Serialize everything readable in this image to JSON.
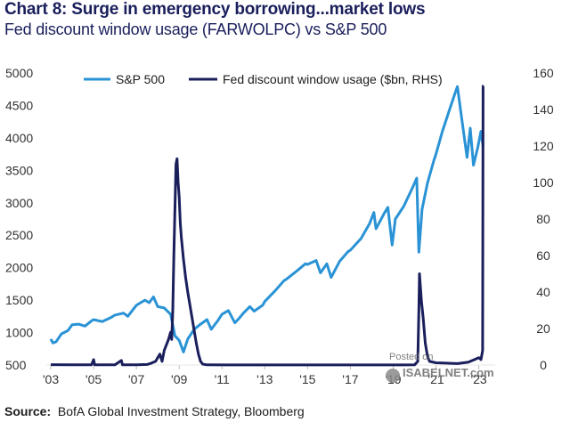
{
  "header": {
    "title": "Chart 8: Surge in emergency borrowing...market lows",
    "subtitle": "Fed discount window usage (FARWOLPC) vs S&P 500"
  },
  "footer": {
    "source_label": "Source:",
    "source_text": "BofA Global Investment Strategy, Bloomberg"
  },
  "watermark": {
    "posted": "Posted on",
    "site": "ISABELNET.com"
  },
  "colors": {
    "sp500": "#2a93d5",
    "discount": "#1a1f5c"
  },
  "chart_data": {
    "type": "line",
    "title": "Fed discount window usage (FARWOLPC) vs S&P 500",
    "x_ticks": [
      "'03",
      "'05",
      "'07",
      "'09",
      "'11",
      "'13",
      "'15",
      "'17",
      "'19",
      "'21",
      "'23"
    ],
    "x_tick_years": [
      2003,
      2005,
      2007,
      2009,
      2011,
      2013,
      2015,
      2017,
      2019,
      2021,
      2023
    ],
    "xlim": [
      2003,
      2023.6
    ],
    "left_axis": {
      "ylim": [
        500,
        5000
      ],
      "ticks": [
        "500",
        "1000",
        "1500",
        "2000",
        "2500",
        "3000",
        "3500",
        "4000",
        "4500",
        "5000"
      ]
    },
    "right_axis": {
      "ylim": [
        0,
        160
      ],
      "ticks": [
        "0",
        "20",
        "40",
        "60",
        "80",
        "100",
        "120",
        "140",
        "160"
      ]
    },
    "legend": [
      {
        "name": "S&P 500"
      },
      {
        "name": "Fed discount window usage ($bn, RHS)"
      }
    ],
    "series": [
      {
        "name": "S&P 500",
        "axis": "left",
        "points": [
          [
            2003.0,
            900
          ],
          [
            2003.1,
            840
          ],
          [
            2003.25,
            860
          ],
          [
            2003.5,
            980
          ],
          [
            2003.8,
            1030
          ],
          [
            2004.0,
            1120
          ],
          [
            2004.3,
            1130
          ],
          [
            2004.6,
            1100
          ],
          [
            2004.9,
            1180
          ],
          [
            2005.0,
            1200
          ],
          [
            2005.4,
            1170
          ],
          [
            2005.8,
            1230
          ],
          [
            2006.0,
            1270
          ],
          [
            2006.4,
            1300
          ],
          [
            2006.6,
            1250
          ],
          [
            2007.0,
            1420
          ],
          [
            2007.4,
            1500
          ],
          [
            2007.6,
            1460
          ],
          [
            2007.8,
            1550
          ],
          [
            2008.0,
            1400
          ],
          [
            2008.3,
            1380
          ],
          [
            2008.6,
            1280
          ],
          [
            2008.8,
            950
          ],
          [
            2009.0,
            880
          ],
          [
            2009.2,
            700
          ],
          [
            2009.4,
            900
          ],
          [
            2009.7,
            1050
          ],
          [
            2010.0,
            1130
          ],
          [
            2010.3,
            1200
          ],
          [
            2010.5,
            1050
          ],
          [
            2010.8,
            1180
          ],
          [
            2011.0,
            1280
          ],
          [
            2011.3,
            1340
          ],
          [
            2011.6,
            1150
          ],
          [
            2011.8,
            1220
          ],
          [
            2012.0,
            1300
          ],
          [
            2012.3,
            1400
          ],
          [
            2012.5,
            1330
          ],
          [
            2012.9,
            1420
          ],
          [
            2013.0,
            1480
          ],
          [
            2013.5,
            1650
          ],
          [
            2013.9,
            1800
          ],
          [
            2014.0,
            1820
          ],
          [
            2014.5,
            1950
          ],
          [
            2014.9,
            2060
          ],
          [
            2015.0,
            2050
          ],
          [
            2015.4,
            2110
          ],
          [
            2015.6,
            1920
          ],
          [
            2015.9,
            2060
          ],
          [
            2016.1,
            1850
          ],
          [
            2016.5,
            2100
          ],
          [
            2016.9,
            2250
          ],
          [
            2017.0,
            2270
          ],
          [
            2017.5,
            2450
          ],
          [
            2017.9,
            2680
          ],
          [
            2018.1,
            2850
          ],
          [
            2018.2,
            2600
          ],
          [
            2018.6,
            2850
          ],
          [
            2018.75,
            2930
          ],
          [
            2018.95,
            2350
          ],
          [
            2019.1,
            2750
          ],
          [
            2019.5,
            2950
          ],
          [
            2019.9,
            3230
          ],
          [
            2020.1,
            3380
          ],
          [
            2020.2,
            2240
          ],
          [
            2020.35,
            2900
          ],
          [
            2020.6,
            3300
          ],
          [
            2020.9,
            3650
          ],
          [
            2021.0,
            3750
          ],
          [
            2021.3,
            4100
          ],
          [
            2021.6,
            4400
          ],
          [
            2021.9,
            4700
          ],
          [
            2022.0,
            4790
          ],
          [
            2022.2,
            4300
          ],
          [
            2022.45,
            3700
          ],
          [
            2022.6,
            4150
          ],
          [
            2022.75,
            3580
          ],
          [
            2022.95,
            3850
          ],
          [
            2023.1,
            4100
          ],
          [
            2023.2,
            3860
          ]
        ]
      },
      {
        "name": "Fed discount window usage ($bn, RHS)",
        "axis": "right",
        "points": [
          [
            2003.0,
            0.2
          ],
          [
            2004.0,
            0.1
          ],
          [
            2004.9,
            0.1
          ],
          [
            2005.0,
            3
          ],
          [
            2005.05,
            0.1
          ],
          [
            2006.0,
            0.1
          ],
          [
            2006.3,
            2.5
          ],
          [
            2006.35,
            0.1
          ],
          [
            2007.0,
            0.1
          ],
          [
            2007.5,
            0.3
          ],
          [
            2007.7,
            1
          ],
          [
            2007.9,
            2
          ],
          [
            2008.0,
            4
          ],
          [
            2008.1,
            6
          ],
          [
            2008.2,
            2
          ],
          [
            2008.3,
            8
          ],
          [
            2008.5,
            14
          ],
          [
            2008.6,
            18
          ],
          [
            2008.65,
            14
          ],
          [
            2008.7,
            30
          ],
          [
            2008.75,
            60
          ],
          [
            2008.8,
            85
          ],
          [
            2008.85,
            110
          ],
          [
            2008.9,
            113
          ],
          [
            2008.95,
            100
          ],
          [
            2009.0,
            92
          ],
          [
            2009.05,
            78
          ],
          [
            2009.1,
            70
          ],
          [
            2009.2,
            58
          ],
          [
            2009.3,
            48
          ],
          [
            2009.4,
            40
          ],
          [
            2009.5,
            33
          ],
          [
            2009.6,
            26
          ],
          [
            2009.7,
            19
          ],
          [
            2009.8,
            12
          ],
          [
            2009.9,
            6
          ],
          [
            2010.0,
            2
          ],
          [
            2010.1,
            0.5
          ],
          [
            2010.3,
            0.1
          ],
          [
            2012.0,
            0.05
          ],
          [
            2019.5,
            0.05
          ],
          [
            2020.0,
            0.1
          ],
          [
            2020.15,
            2
          ],
          [
            2020.2,
            30
          ],
          [
            2020.23,
            50
          ],
          [
            2020.27,
            43
          ],
          [
            2020.32,
            35
          ],
          [
            2020.4,
            26
          ],
          [
            2020.5,
            12
          ],
          [
            2020.6,
            5
          ],
          [
            2020.7,
            2
          ],
          [
            2021.0,
            1.2
          ],
          [
            2021.5,
            1
          ],
          [
            2022.0,
            0.8
          ],
          [
            2022.5,
            1.5
          ],
          [
            2022.8,
            3
          ],
          [
            2023.0,
            4
          ],
          [
            2023.1,
            3
          ],
          [
            2023.15,
            6
          ],
          [
            2023.18,
            8
          ],
          [
            2023.2,
            152.8
          ],
          [
            2023.22,
            152.8
          ]
        ]
      }
    ]
  }
}
